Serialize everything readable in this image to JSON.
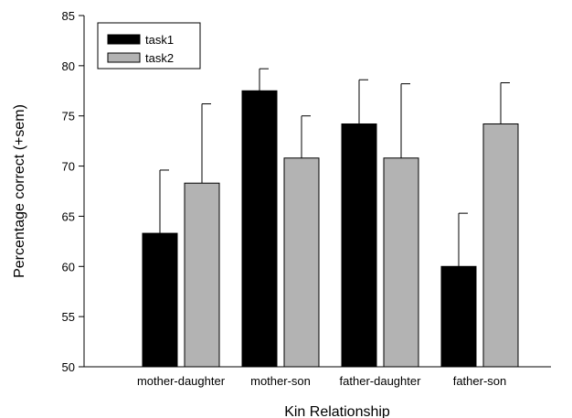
{
  "chart_data": {
    "type": "bar",
    "title": "",
    "xlabel": "Kin Relationship",
    "ylabel": "Percentage correct (+sem)",
    "ylim": [
      50,
      85
    ],
    "yticks": [
      50,
      55,
      60,
      65,
      70,
      75,
      80,
      85
    ],
    "grid": false,
    "legend_position": "top-left",
    "categories": [
      "mother-daughter",
      "mother-son",
      "father-daughter",
      "father-son"
    ],
    "series": [
      {
        "name": "task1",
        "color": "#000000",
        "values": [
          63.3,
          77.5,
          74.2,
          60.0
        ],
        "error": [
          6.3,
          2.2,
          4.4,
          5.3
        ]
      },
      {
        "name": "task2",
        "color": "#b3b3b3",
        "values": [
          68.3,
          70.8,
          70.8,
          74.2
        ],
        "error": [
          7.9,
          4.2,
          7.4,
          4.1
        ]
      }
    ]
  }
}
